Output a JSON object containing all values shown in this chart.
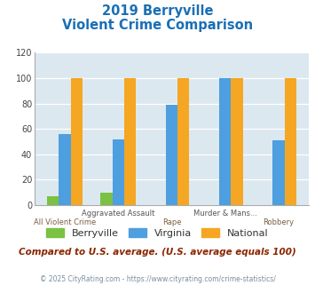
{
  "title_line1": "2019 Berryville",
  "title_line2": "Violent Crime Comparison",
  "categories": [
    "All Violent Crime",
    "Aggravated Assault",
    "Rape",
    "Murder & Mans...",
    "Robbery"
  ],
  "cat_labels_row1": [
    "",
    "Aggravated Assault",
    "",
    "Murder & Mans...",
    ""
  ],
  "cat_labels_row2": [
    "All Violent Crime",
    "",
    "Rape",
    "",
    "Robbery"
  ],
  "berryville": [
    7,
    10,
    0,
    0,
    0
  ],
  "virginia": [
    56,
    52,
    79,
    100,
    51
  ],
  "national": [
    100,
    100,
    100,
    100,
    100
  ],
  "berryville_color": "#7bc142",
  "virginia_color": "#4d9fe0",
  "national_color": "#f5a623",
  "ylim": [
    0,
    120
  ],
  "yticks": [
    0,
    20,
    40,
    60,
    80,
    100,
    120
  ],
  "title_color": "#1a6fb5",
  "subtitle_note": "Compared to U.S. average. (U.S. average equals 100)",
  "footnote": "© 2025 CityRating.com - https://www.cityrating.com/crime-statistics/",
  "plot_bg_color": "#dce8f0",
  "legend_labels": [
    "Berryville",
    "Virginia",
    "National"
  ],
  "bar_width": 0.22,
  "subtitle_color": "#8b2500",
  "footnote_color": "#7a8fa0",
  "label_color1": "#555555",
  "label_color2": "#7a6040"
}
